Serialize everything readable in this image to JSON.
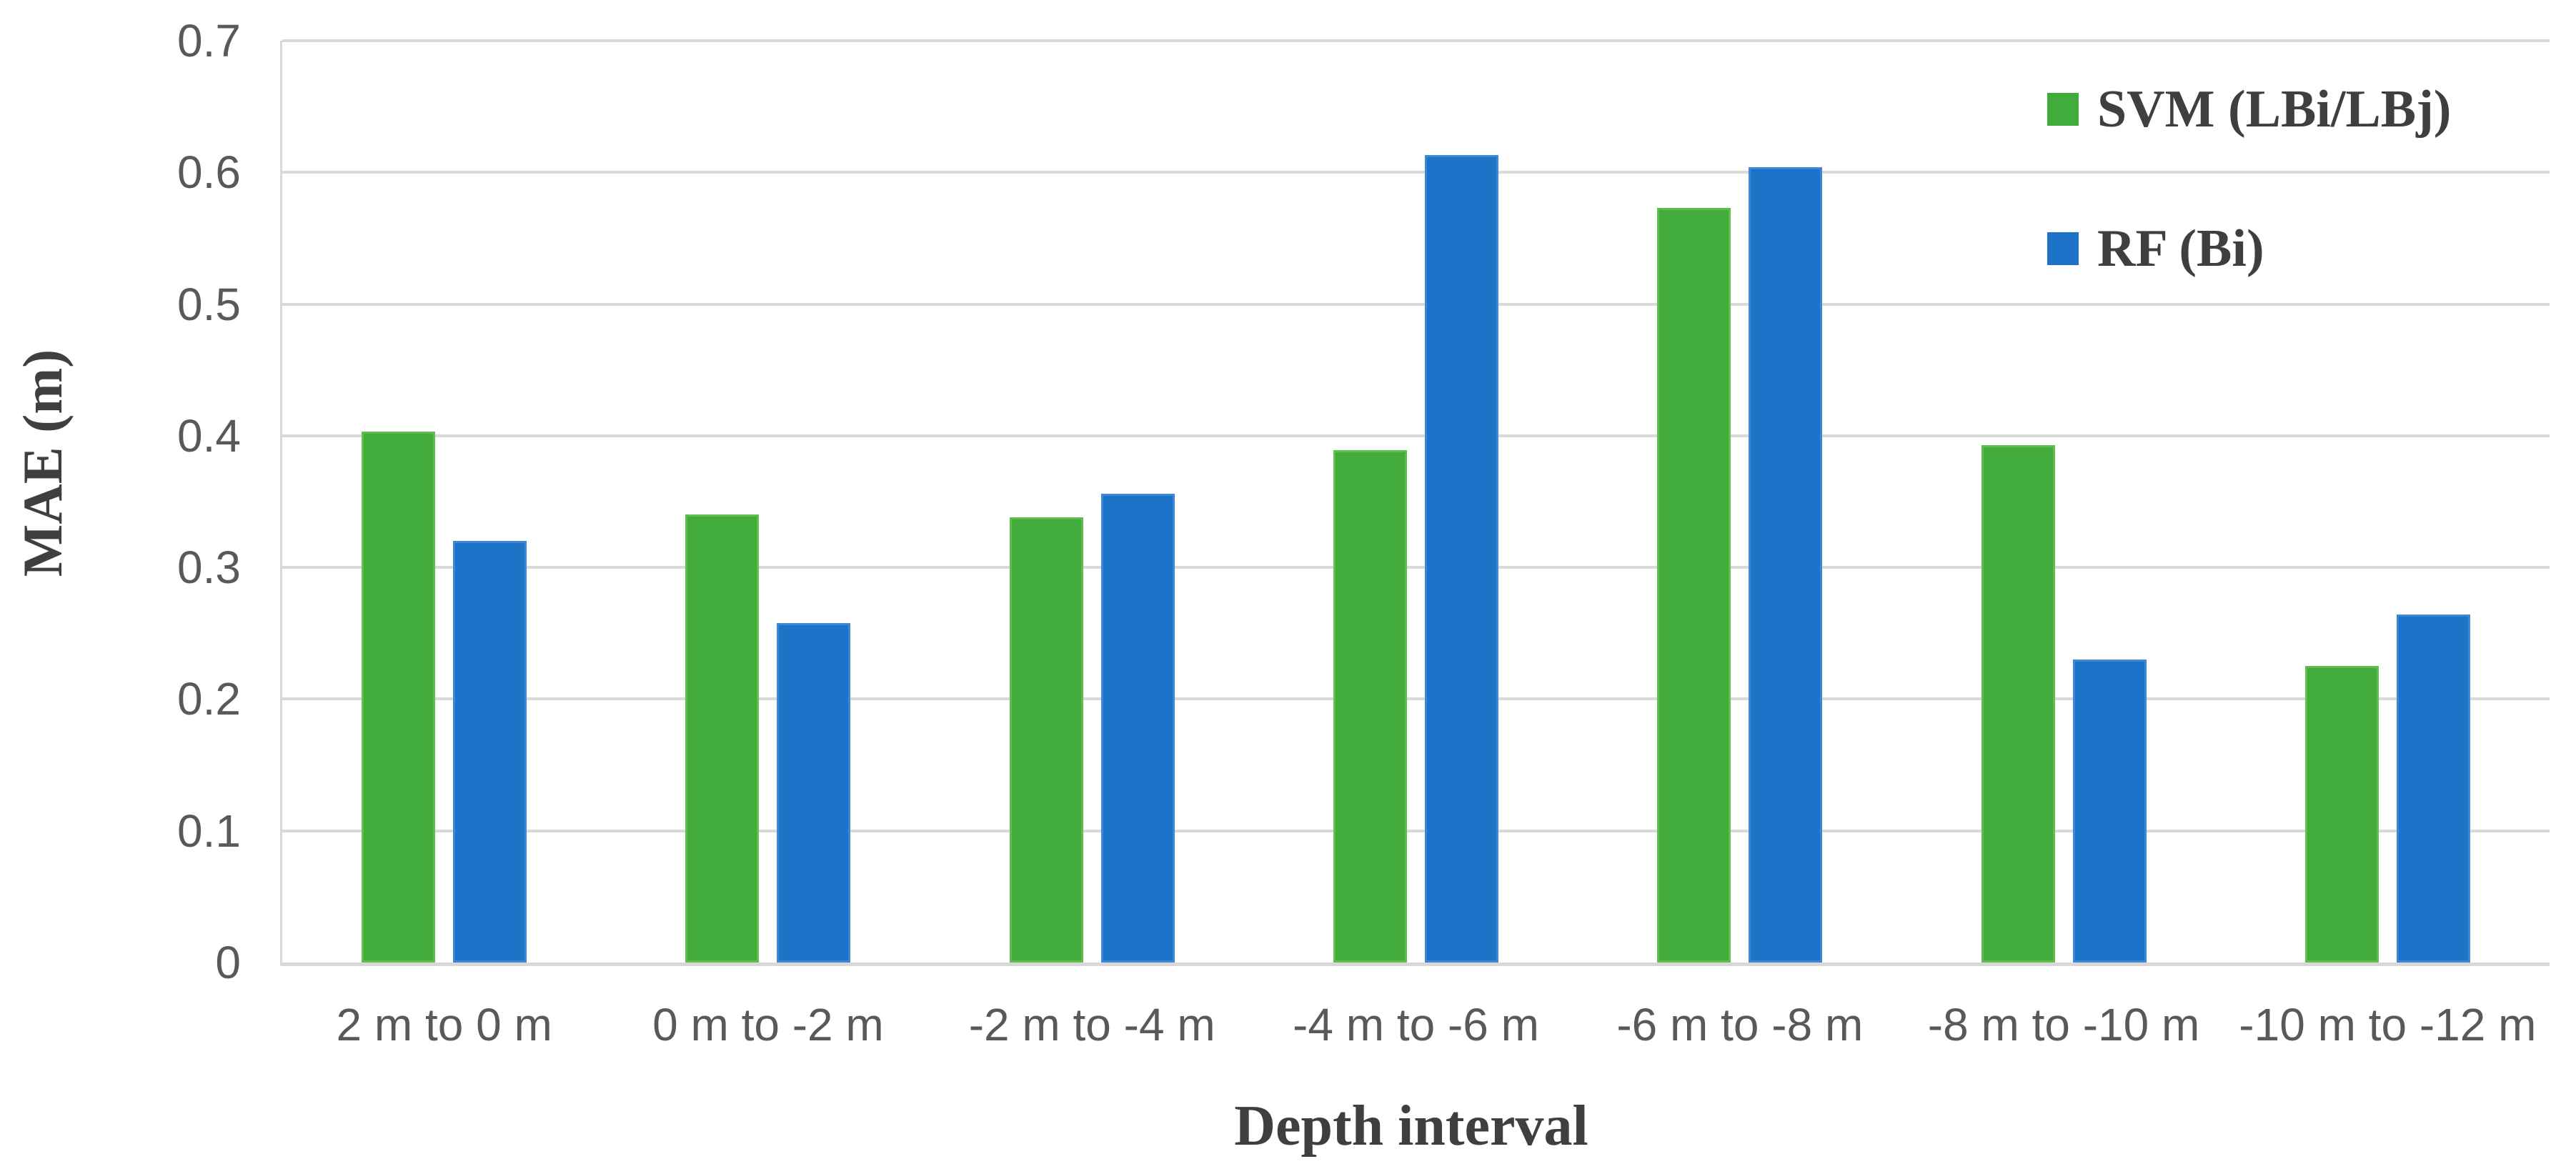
{
  "chart_data": {
    "type": "bar",
    "title": "",
    "xlabel": "Depth interval",
    "ylabel": "MAE (m)",
    "categories": [
      "2 m to 0 m",
      "0 m to -2 m",
      "-2 m to -4 m",
      "-4 m to -6 m",
      "-6 m to -8 m",
      "-8 m to -10 m",
      "-10 m to -12 m"
    ],
    "series": [
      {
        "name": "SVM (LBi/LBj)",
        "color": "#41ab3b",
        "edge_color": "#5fbe4b",
        "values": [
          0.403,
          0.34,
          0.338,
          0.389,
          0.573,
          0.393,
          0.225
        ]
      },
      {
        "name": "RF (Bi)",
        "color": "#1c73c8",
        "edge_color": "#3d87d6",
        "values": [
          0.32,
          0.258,
          0.356,
          0.613,
          0.604,
          0.23,
          0.264
        ]
      }
    ],
    "ylim": [
      0,
      0.7
    ],
    "ytick_step": 0.1,
    "yticks": [
      "0",
      "0.1",
      "0.2",
      "0.3",
      "0.4",
      "0.5",
      "0.6",
      "0.7"
    ],
    "grid": "horizontal",
    "legend_position": "top-right",
    "colors": {
      "gridline": "#d9d9d9",
      "tick_text": "#595959",
      "title_text": "#3f3f3f",
      "background": "#ffffff"
    }
  }
}
